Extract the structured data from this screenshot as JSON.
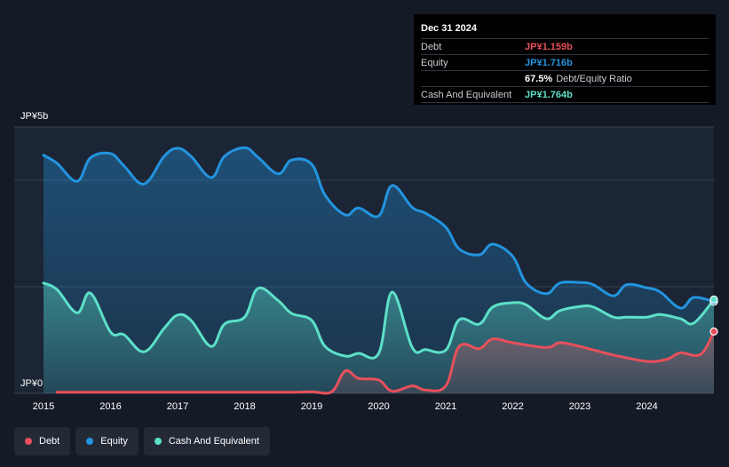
{
  "tooltip": {
    "date": "Dec 31 2024",
    "debt_label": "Debt",
    "debt_value": "JP¥1.159b",
    "equity_label": "Equity",
    "equity_value": "JP¥1.716b",
    "ratio_value": "67.5%",
    "ratio_label": "Debt/Equity Ratio",
    "cash_label": "Cash And Equivalent",
    "cash_value": "JP¥1.764b"
  },
  "legend": {
    "debt": "Debt",
    "equity": "Equity",
    "cash": "Cash And Equivalent"
  },
  "colors": {
    "debt": "#e8505b",
    "equity": "#2394df",
    "cash": "#5de0c8",
    "background": "#151b26"
  },
  "chart_data": {
    "type": "area",
    "title": "",
    "ylabel": "",
    "ylim": [
      0,
      5
    ],
    "y_tick_labels": [
      {
        "value": 5,
        "label": "JP¥5b"
      },
      {
        "value": 0,
        "label": "JP¥0"
      }
    ],
    "xlim": [
      2015,
      2025
    ],
    "x_ticks": [
      2015,
      2016,
      2017,
      2018,
      2019,
      2020,
      2021,
      2022,
      2023,
      2024
    ],
    "x_tick_labels": [
      "2015",
      "2016",
      "2017",
      "2018",
      "2019",
      "2020",
      "2021",
      "2022",
      "2023",
      "2024"
    ],
    "series": [
      {
        "name": "Equity",
        "x": [
          2015.0,
          2015.2,
          2015.5,
          2015.7,
          2016.0,
          2016.2,
          2016.5,
          2016.8,
          2017.0,
          2017.2,
          2017.5,
          2017.7,
          2018.0,
          2018.2,
          2018.5,
          2018.7,
          2019.0,
          2019.2,
          2019.5,
          2019.7,
          2020.0,
          2020.2,
          2020.5,
          2020.7,
          2021.0,
          2021.2,
          2021.5,
          2021.7,
          2022.0,
          2022.2,
          2022.5,
          2022.7,
          2023.0,
          2023.2,
          2023.5,
          2023.7,
          2024.0,
          2024.2,
          2024.5,
          2024.7,
          2025.0
        ],
        "values": [
          4.47,
          4.32,
          3.98,
          4.42,
          4.5,
          4.27,
          3.93,
          4.45,
          4.6,
          4.45,
          4.05,
          4.45,
          4.61,
          4.43,
          4.12,
          4.38,
          4.3,
          3.72,
          3.35,
          3.48,
          3.33,
          3.9,
          3.49,
          3.38,
          3.12,
          2.71,
          2.6,
          2.8,
          2.57,
          2.07,
          1.87,
          2.07,
          2.08,
          2.04,
          1.83,
          2.04,
          1.98,
          1.9,
          1.6,
          1.8,
          1.72
        ]
      },
      {
        "name": "Cash And Equivalent",
        "x": [
          2015.0,
          2015.2,
          2015.5,
          2015.7,
          2016.0,
          2016.2,
          2016.5,
          2016.8,
          2017.0,
          2017.2,
          2017.5,
          2017.7,
          2018.0,
          2018.2,
          2018.5,
          2018.7,
          2019.0,
          2019.2,
          2019.5,
          2019.7,
          2020.0,
          2020.2,
          2020.5,
          2020.7,
          2021.0,
          2021.2,
          2021.5,
          2021.7,
          2022.0,
          2022.2,
          2022.5,
          2022.7,
          2023.0,
          2023.2,
          2023.5,
          2023.7,
          2024.0,
          2024.2,
          2024.5,
          2024.7,
          2025.0
        ],
        "values": [
          2.07,
          1.95,
          1.51,
          1.88,
          1.15,
          1.1,
          0.78,
          1.22,
          1.47,
          1.37,
          0.88,
          1.3,
          1.43,
          1.97,
          1.74,
          1.5,
          1.37,
          0.88,
          0.7,
          0.75,
          0.75,
          1.9,
          0.86,
          0.82,
          0.81,
          1.38,
          1.3,
          1.62,
          1.7,
          1.66,
          1.4,
          1.55,
          1.63,
          1.62,
          1.43,
          1.43,
          1.43,
          1.48,
          1.4,
          1.32,
          1.76
        ]
      },
      {
        "name": "Debt",
        "x": [
          2015.2,
          2016.0,
          2017.0,
          2018.0,
          2018.7,
          2019.0,
          2019.3,
          2019.5,
          2019.7,
          2020.0,
          2020.2,
          2020.5,
          2020.7,
          2021.0,
          2021.2,
          2021.5,
          2021.7,
          2022.0,
          2022.5,
          2022.7,
          2023.0,
          2023.5,
          2024.0,
          2024.3,
          2024.5,
          2024.8,
          2025.0
        ],
        "values": [
          0.02,
          0.02,
          0.02,
          0.02,
          0.02,
          0.03,
          0.03,
          0.42,
          0.28,
          0.25,
          0.04,
          0.14,
          0.06,
          0.14,
          0.88,
          0.84,
          1.02,
          0.95,
          0.86,
          0.95,
          0.88,
          0.72,
          0.6,
          0.64,
          0.76,
          0.73,
          1.16
        ]
      }
    ],
    "legend_position": "bottom-left"
  }
}
